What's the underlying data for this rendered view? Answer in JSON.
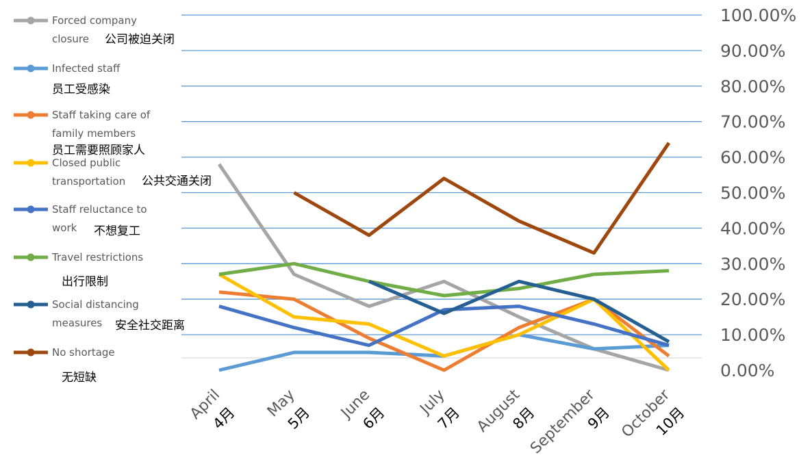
{
  "chart_data": {
    "type": "line",
    "categories": [
      "April",
      "May",
      "June",
      "July",
      "August",
      "September",
      "October"
    ],
    "categories_cn": [
      "4月",
      "5月",
      "6月",
      "7月",
      "8月",
      "9月",
      "10月"
    ],
    "ylim": [
      0,
      1
    ],
    "y_ticks": [
      "0.00%",
      "10.00%",
      "20.00%",
      "30.00%",
      "40.00%",
      "50.00%",
      "60.00%",
      "70.00%",
      "80.00%",
      "90.00%",
      "100.00%"
    ],
    "grid": true,
    "y_axis_position": "right",
    "legend_position": "left",
    "series": [
      {
        "name": "Forced company closure",
        "name_lines": [
          "Forced company",
          "closure"
        ],
        "name_cn": "公司被迫关闭",
        "color": "#A5A5A5",
        "values": [
          0.58,
          0.27,
          0.18,
          0.25,
          0.15,
          0.06,
          0.0
        ]
      },
      {
        "name": "Infected staff",
        "name_lines": [
          "Infected staff"
        ],
        "name_cn": "员工受感染",
        "color": "#5B9BD5",
        "values": [
          0.0,
          0.05,
          0.05,
          0.04,
          0.1,
          0.06,
          0.07
        ]
      },
      {
        "name": "Staff taking care of family members",
        "name_lines": [
          "Staff taking care of",
          "family members"
        ],
        "name_cn": "员工需要照顾家人",
        "color": "#ED7D31",
        "values": [
          0.22,
          0.2,
          0.09,
          0.0,
          0.12,
          0.2,
          0.04
        ]
      },
      {
        "name": "Closed public transportation",
        "name_lines": [
          "Closed public",
          "transportation"
        ],
        "name_cn": "公共交通关闭",
        "color": "#FFC000",
        "values": [
          0.27,
          0.15,
          0.13,
          0.04,
          0.1,
          0.2,
          0.0
        ]
      },
      {
        "name": "Staff reluctance to work",
        "name_lines": [
          "Staff reluctance to",
          "work"
        ],
        "name_cn": "不想复工",
        "color": "#4472C4",
        "values": [
          0.18,
          0.12,
          0.07,
          0.17,
          0.18,
          0.13,
          0.07
        ]
      },
      {
        "name": "Travel restrictions",
        "name_lines": [
          "Travel restrictions"
        ],
        "name_cn": "出行限制",
        "color": "#70AD47",
        "values": [
          0.27,
          0.3,
          0.25,
          0.21,
          0.23,
          0.27,
          0.28
        ]
      },
      {
        "name": "Social distancing measures",
        "name_lines": [
          "Social distancing",
          "measures"
        ],
        "name_cn": "安全社交距离",
        "color": "#255E91",
        "values": [
          null,
          null,
          0.25,
          0.16,
          0.25,
          0.2,
          0.08
        ]
      },
      {
        "name": "No shortage",
        "name_lines": [
          "No shortage"
        ],
        "name_cn": "无短缺",
        "color": "#9E480E",
        "values": [
          null,
          0.5,
          0.38,
          0.54,
          0.42,
          0.33,
          0.64
        ]
      }
    ]
  }
}
